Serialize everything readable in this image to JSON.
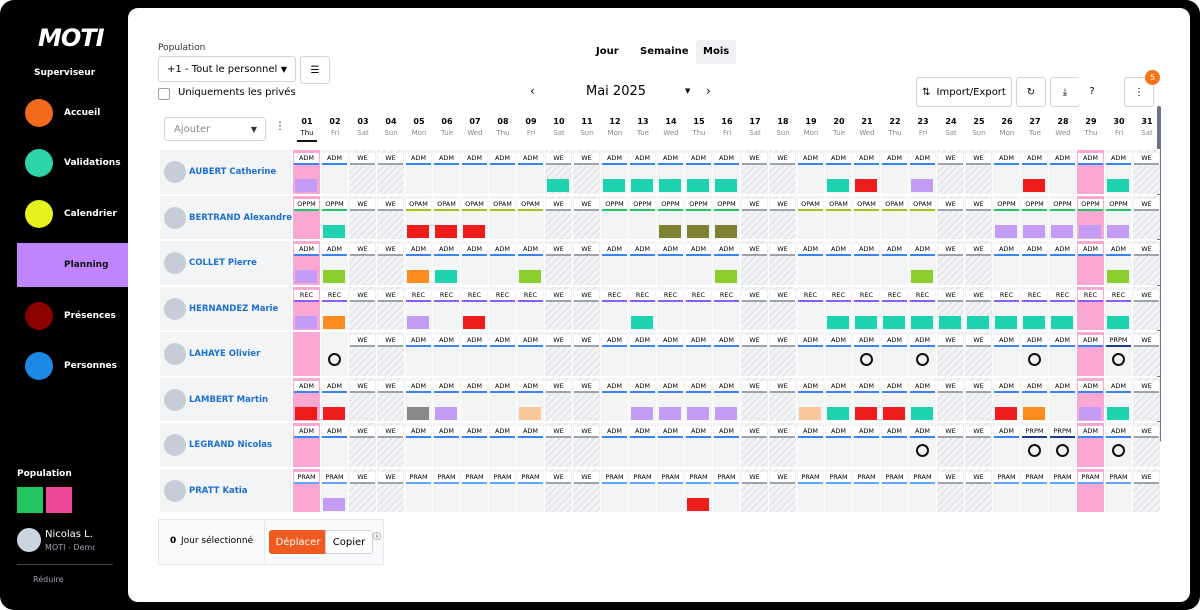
{
  "sidebar": {
    "logo": "MOTI",
    "role": "Superviseur",
    "nav": [
      "Accueil",
      "Validations",
      "Calendrier",
      "Planning",
      "Présences",
      "Personnes"
    ],
    "population_label": "Population",
    "user_name": "Nicolas L.",
    "user_org": "MOTI - Demo",
    "collapse": "Réduire"
  },
  "toolbar": {
    "population_label": "Population",
    "population_select": "+1 - Tout le personnel",
    "private_only": "Uniquements les privés",
    "views": [
      "Jour",
      "Semaine",
      "Mois"
    ],
    "month": "Mai 2025",
    "import_export": "Import/Export",
    "notifications": 5,
    "add": "Ajouter"
  },
  "calendar": {
    "days": [
      "01",
      "02",
      "03",
      "04",
      "05",
      "06",
      "07",
      "08",
      "09",
      "10",
      "11",
      "12",
      "13",
      "14",
      "15",
      "16",
      "17",
      "18",
      "19",
      "20",
      "21",
      "22",
      "23",
      "24",
      "25",
      "26",
      "27",
      "28",
      "29",
      "30",
      "31"
    ],
    "weekdays": [
      "Thu",
      "Fri",
      "Sat",
      "Sun",
      "Mon",
      "Tue",
      "Wed",
      "Thu",
      "Fri",
      "Sat",
      "Sun",
      "Mon",
      "Tue",
      "Wed",
      "Thu",
      "Fri",
      "Sat",
      "Sun",
      "Mon",
      "Tue",
      "Wed",
      "Thu",
      "Fri",
      "Sat",
      "Sun",
      "Mon",
      "Tue",
      "Wed",
      "Thu",
      "Fri",
      "Sat"
    ],
    "shift_colors": {
      "ADM": "#3b82f6",
      "WE": "#9ca3af",
      "OPPM": "#22c55e",
      "OPAM": "#a3c21a",
      "REC": "#8b5cf6",
      "PRAM": "#60a5fa",
      "PRPM": "#1e3a8a"
    },
    "employees": [
      {
        "name": "AUBERT Catherine",
        "shifts": [
          "ADM",
          "ADM",
          "WE",
          "WE",
          "ADM",
          "ADM",
          "ADM",
          "ADM",
          "ADM",
          "WE",
          "WE",
          "ADM",
          "ADM",
          "ADM",
          "ADM",
          "ADM",
          "WE",
          "WE",
          "ADM",
          "ADM",
          "ADM",
          "ADM",
          "ADM",
          "WE",
          "WE",
          "ADM",
          "ADM",
          "ADM",
          "ADM",
          "ADM",
          "WE"
        ]
      },
      {
        "name": "BERTRAND Alexandre",
        "shifts": [
          "OPPM",
          "OPPM",
          "WE",
          "WE",
          "OPAM",
          "OPAM",
          "OPAM",
          "OPAM",
          "OPAM",
          "WE",
          "WE",
          "OPPM",
          "OPPM",
          "OPPM",
          "OPPM",
          "OPPM",
          "WE",
          "WE",
          "OPAM",
          "OPAM",
          "OPAM",
          "OPAM",
          "OPAM",
          "WE",
          "WE",
          "OPPM",
          "OPPM",
          "OPPM",
          "OPPM",
          "OPPM",
          "WE"
        ]
      },
      {
        "name": "COLLET Pierre",
        "shifts": [
          "ADM",
          "ADM",
          "WE",
          "WE",
          "ADM",
          "ADM",
          "ADM",
          "ADM",
          "ADM",
          "WE",
          "WE",
          "ADM",
          "ADM",
          "ADM",
          "ADM",
          "ADM",
          "WE",
          "WE",
          "ADM",
          "ADM",
          "ADM",
          "ADM",
          "ADM",
          "WE",
          "WE",
          "ADM",
          "ADM",
          "ADM",
          "ADM",
          "ADM",
          "WE"
        ]
      },
      {
        "name": "HERNANDEZ Marie",
        "shifts": [
          "REC",
          "REC",
          "WE",
          "WE",
          "REC",
          "REC",
          "REC",
          "REC",
          "REC",
          "WE",
          "WE",
          "REC",
          "REC",
          "REC",
          "REC",
          "REC",
          "WE",
          "WE",
          "REC",
          "REC",
          "REC",
          "REC",
          "REC",
          "WE",
          "WE",
          "REC",
          "REC",
          "REC",
          "REC",
          "REC",
          "WE"
        ]
      },
      {
        "name": "LAHAYE Olivier",
        "shifts": [
          null,
          null,
          "WE",
          "WE",
          "ADM",
          "ADM",
          "ADM",
          "ADM",
          "ADM",
          "WE",
          "WE",
          "ADM",
          "ADM",
          "ADM",
          "ADM",
          "ADM",
          "WE",
          "WE",
          "ADM",
          "ADM",
          "ADM",
          "ADM",
          "ADM",
          "WE",
          "WE",
          "ADM",
          "ADM",
          "ADM",
          "ADM",
          "PRPM",
          "WE"
        ]
      },
      {
        "name": "LAMBERT Martin",
        "shifts": [
          "ADM",
          "ADM",
          "WE",
          "WE",
          "ADM",
          "ADM",
          "ADM",
          "ADM",
          "ADM",
          "WE",
          "WE",
          "ADM",
          "ADM",
          "ADM",
          "ADM",
          "ADM",
          "WE",
          "WE",
          "ADM",
          "ADM",
          "ADM",
          "ADM",
          "ADM",
          "WE",
          "WE",
          "ADM",
          "ADM",
          "ADM",
          "ADM",
          "ADM",
          "WE"
        ]
      },
      {
        "name": "LEGRAND Nicolas",
        "shifts": [
          "ADM",
          "ADM",
          "WE",
          "WE",
          "ADM",
          "ADM",
          "ADM",
          "ADM",
          "ADM",
          "WE",
          "WE",
          "ADM",
          "ADM",
          "ADM",
          "ADM",
          "ADM",
          "WE",
          "WE",
          "ADM",
          "ADM",
          "ADM",
          "ADM",
          "ADM",
          "WE",
          "WE",
          "ADM",
          "PRPM",
          "PRPM",
          "ADM",
          "ADM",
          "WE"
        ]
      },
      {
        "name": "PRATT Katia",
        "shifts": [
          "PRAM",
          "PRAM",
          "WE",
          "WE",
          "PRAM",
          "PRAM",
          "PRAM",
          "PRAM",
          "PRAM",
          "WE",
          "WE",
          "PRAM",
          "PRAM",
          "PRAM",
          "PRAM",
          "PRAM",
          "WE",
          "WE",
          "PRAM",
          "PRAM",
          "PRAM",
          "PRAM",
          "PRAM",
          "WE",
          "WE",
          "PRAM",
          "PRAM",
          "PRAM",
          "PRAM",
          "PRAM",
          "WE"
        ]
      }
    ]
  },
  "footer": {
    "selected_count": 0,
    "selected_label": "Jour sélectionné",
    "move": "Déplacer",
    "copy": "Copier"
  }
}
